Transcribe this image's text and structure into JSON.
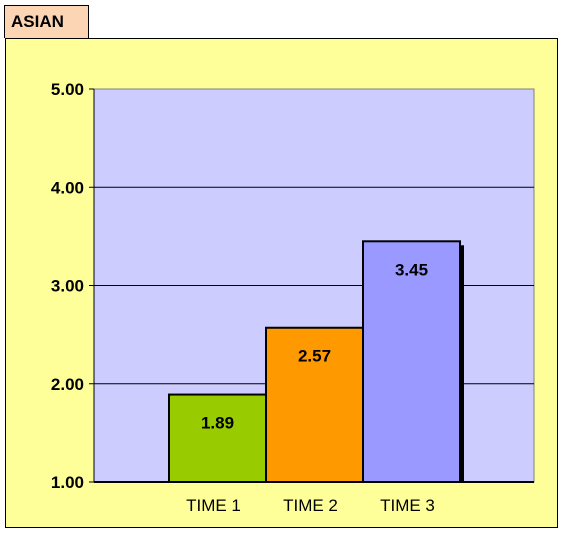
{
  "chart_data": {
    "type": "bar",
    "title": "ASIAN",
    "categories": [
      "TIME 1",
      "TIME 2",
      "TIME 3"
    ],
    "values": [
      1.89,
      2.57,
      3.45
    ],
    "data_labels": [
      "1.89",
      "2.57",
      "3.45"
    ],
    "bar_colors": [
      "#99cc00",
      "#ff9900",
      "#9999ff"
    ],
    "ylim": [
      1.0,
      5.0
    ],
    "yticks": [
      1.0,
      2.0,
      3.0,
      4.0,
      5.0
    ],
    "ytick_labels": [
      "1.00",
      "2.00",
      "3.00",
      "4.00",
      "5.00"
    ],
    "grid": true,
    "plot_background": "#ccccff",
    "chart_background": "#ffff99"
  }
}
